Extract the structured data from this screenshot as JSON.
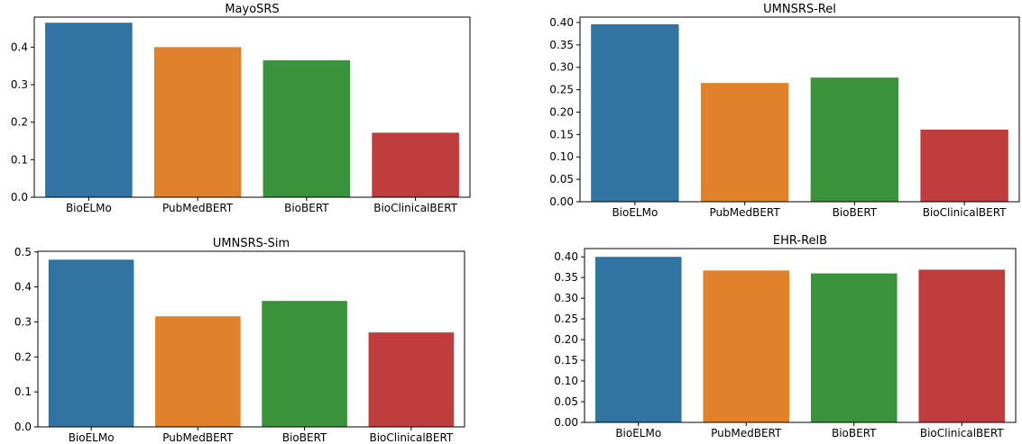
{
  "chart_data": [
    {
      "type": "bar",
      "title": "MayoSRS",
      "categories": [
        "BioELMo",
        "PubMedBERT",
        "BioBERT",
        "BioClinicalBERT"
      ],
      "values": [
        0.465,
        0.4,
        0.365,
        0.172
      ],
      "colors": [
        "#3274a1",
        "#e1812c",
        "#3a923a",
        "#c03d3e"
      ],
      "ylim": [
        0,
        0.48
      ],
      "yticks": [
        0.0,
        0.1,
        0.2,
        0.3,
        0.4
      ],
      "ytick_labels": [
        "0.0",
        "0.1",
        "0.2",
        "0.3",
        "0.4"
      ],
      "grid": false
    },
    {
      "type": "bar",
      "title": "UMNSRS-Rel",
      "categories": [
        "BioELMo",
        "PubMedBERT",
        "BioBERT",
        "BioClinicalBERT"
      ],
      "values": [
        0.396,
        0.265,
        0.277,
        0.161
      ],
      "colors": [
        "#3274a1",
        "#e1812c",
        "#3a923a",
        "#c03d3e"
      ],
      "ylim": [
        0,
        0.412
      ],
      "yticks": [
        0.0,
        0.05,
        0.1,
        0.15,
        0.2,
        0.25,
        0.3,
        0.35,
        0.4
      ],
      "ytick_labels": [
        "0.00",
        "0.05",
        "0.10",
        "0.15",
        "0.20",
        "0.25",
        "0.30",
        "0.35",
        "0.40"
      ],
      "grid": false
    },
    {
      "type": "bar",
      "title": "UMNSRS-Sim",
      "categories": [
        "BioELMo",
        "PubMedBERT",
        "BioBERT",
        "BioClinicalBERT"
      ],
      "values": [
        0.478,
        0.316,
        0.36,
        0.27
      ],
      "colors": [
        "#3274a1",
        "#e1812c",
        "#3a923a",
        "#c03d3e"
      ],
      "ylim": [
        0,
        0.502
      ],
      "yticks": [
        0.0,
        0.1,
        0.2,
        0.3,
        0.4,
        0.5
      ],
      "ytick_labels": [
        "0.0",
        "0.1",
        "0.2",
        "0.3",
        "0.4",
        "0.5"
      ],
      "grid": false
    },
    {
      "type": "bar",
      "title": "EHR-RelB",
      "categories": [
        "BioELMo",
        "PubMedBERT",
        "BioBERT",
        "BioClinicalBERT"
      ],
      "values": [
        0.4,
        0.367,
        0.36,
        0.369
      ],
      "colors": [
        "#3274a1",
        "#e1812c",
        "#3a923a",
        "#c03d3e"
      ],
      "ylim": [
        0,
        0.42
      ],
      "yticks": [
        0.0,
        0.05,
        0.1,
        0.15,
        0.2,
        0.25,
        0.3,
        0.35,
        0.4
      ],
      "ytick_labels": [
        "0.00",
        "0.05",
        "0.10",
        "0.15",
        "0.20",
        "0.25",
        "0.30",
        "0.35",
        "0.40"
      ],
      "grid": false
    }
  ]
}
